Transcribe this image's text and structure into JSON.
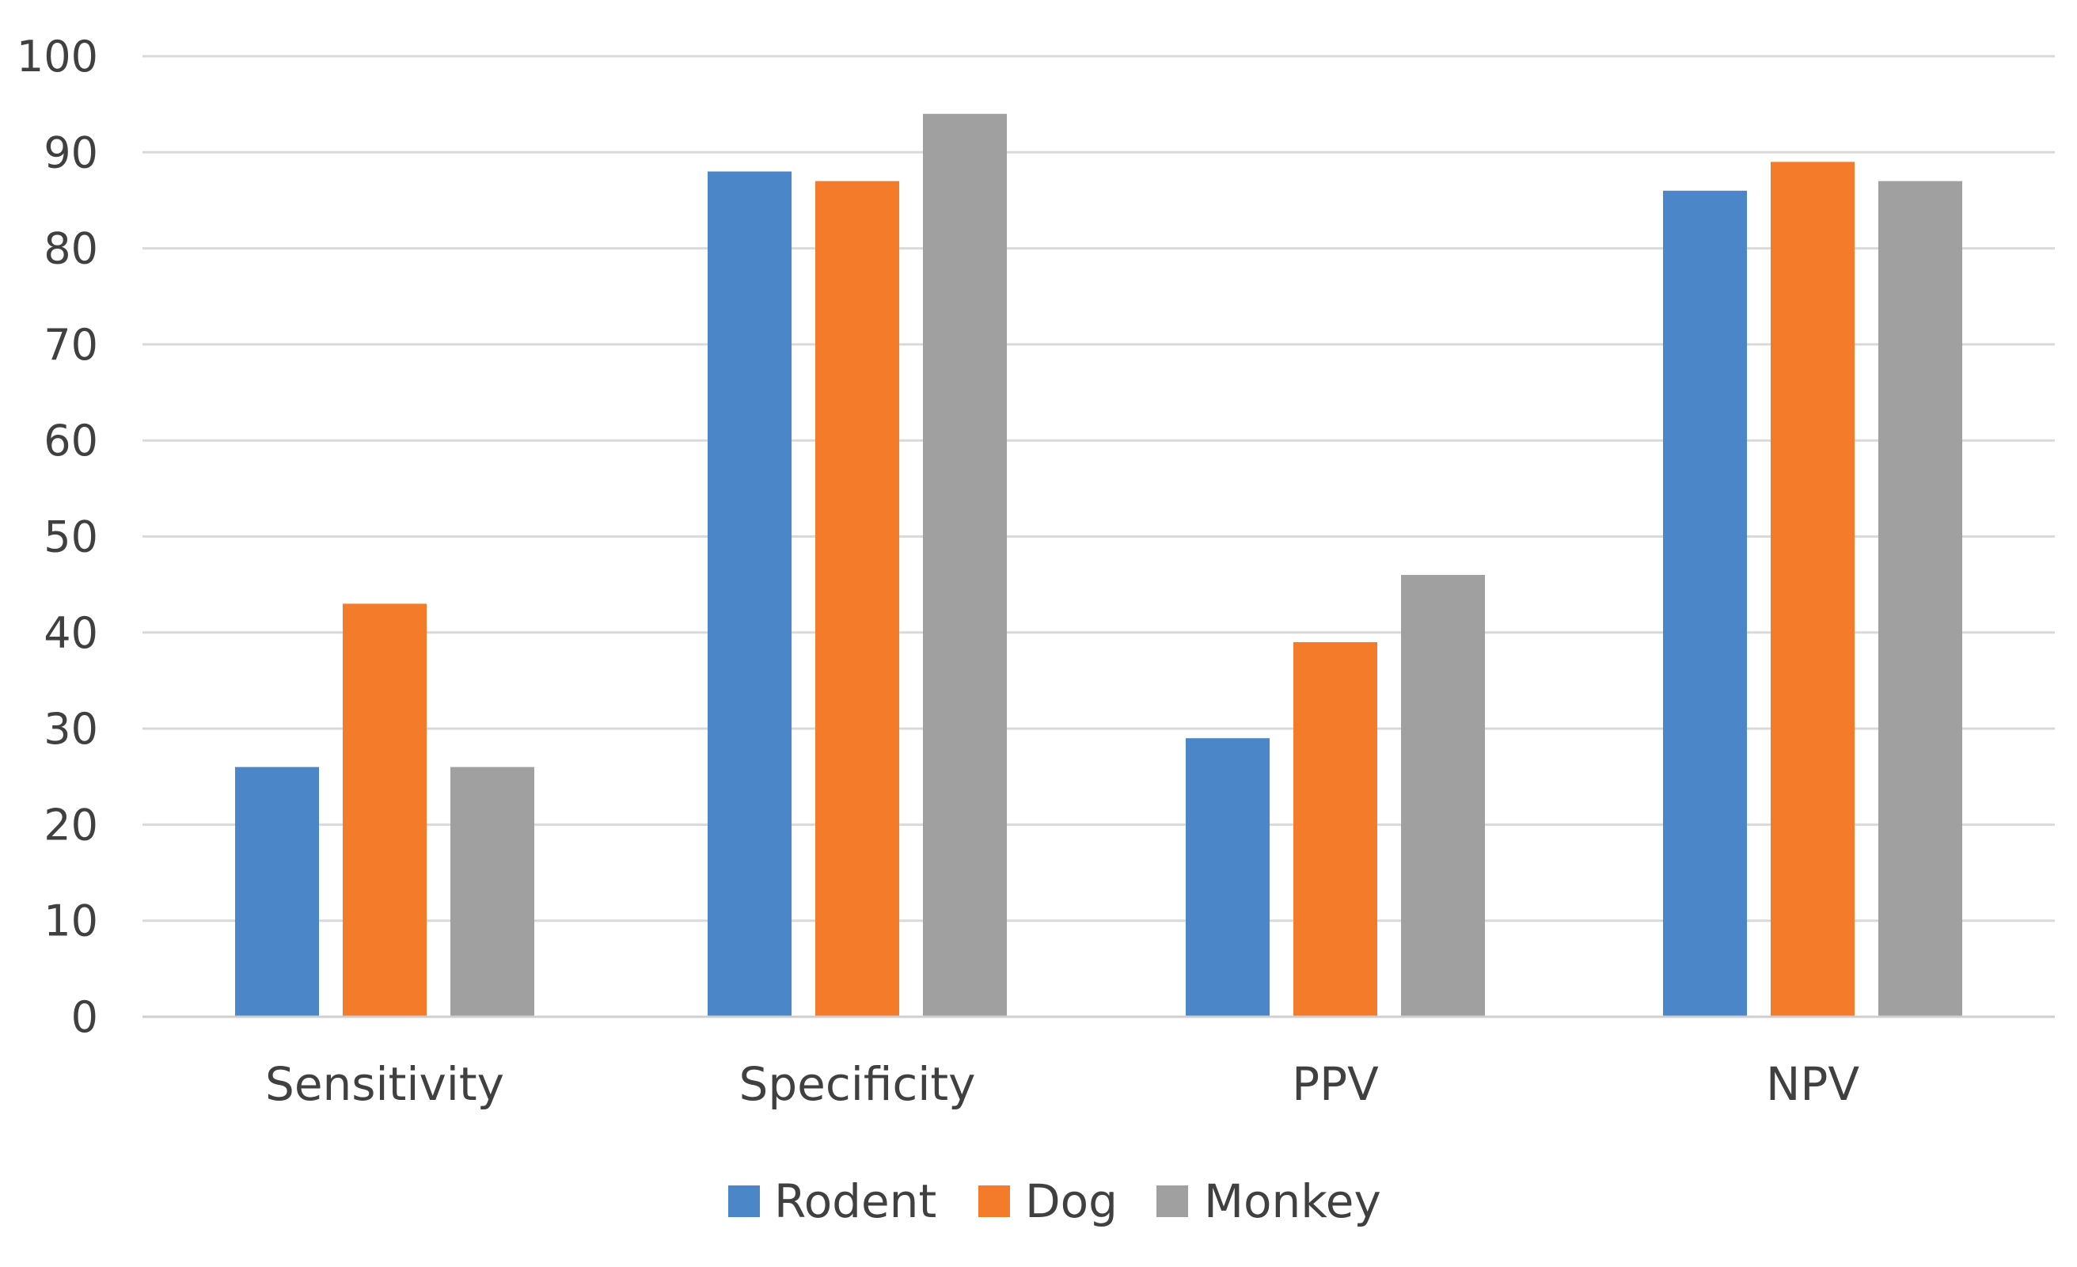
{
  "chart_data": {
    "type": "bar",
    "title": "",
    "xlabel": "",
    "ylabel": "",
    "categories": [
      "Sensitivity",
      "Specificity",
      "PPV",
      "NPV"
    ],
    "series": [
      {
        "name": "Rodent",
        "color": "#4a86c8",
        "values": [
          26,
          88,
          29,
          86
        ]
      },
      {
        "name": "Dog",
        "color": "#f47b2a",
        "values": [
          43,
          87,
          39,
          89
        ]
      },
      {
        "name": "Monkey",
        "color": "#a0a0a0",
        "values": [
          26,
          94,
          46,
          87
        ]
      }
    ],
    "ylim": [
      0,
      100
    ],
    "yticks": [
      0,
      10,
      20,
      30,
      40,
      50,
      60,
      70,
      80,
      90,
      100
    ],
    "grid": true,
    "legend": "bottom-center"
  }
}
